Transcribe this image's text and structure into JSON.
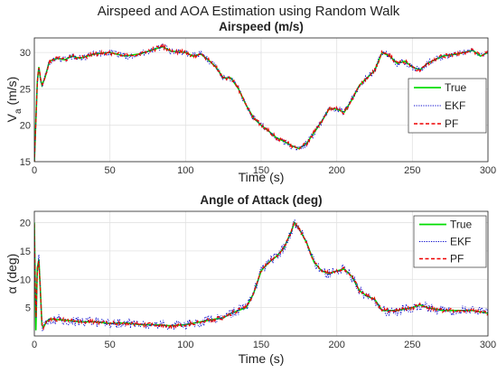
{
  "figure": {
    "suptitle": "Airspeed and AOA Estimation using Random Walk"
  },
  "chart_data": [
    {
      "type": "line",
      "title": "Airspeed (m/s)",
      "xlabel": "Time (s)",
      "ylabel": "V_a (m/s)",
      "xlim": [
        0,
        300
      ],
      "ylim": [
        15,
        32
      ],
      "xticks": [
        "0",
        "50",
        "100",
        "150",
        "200",
        "250",
        "300"
      ],
      "yticks": [
        "15",
        "20",
        "25",
        "30"
      ],
      "grid": true,
      "legend_position": "right",
      "series": [
        {
          "name": "True",
          "color": "#00dd00",
          "style": "solid",
          "x": [
            0,
            2,
            3,
            4,
            5,
            7,
            10,
            15,
            20,
            25,
            30,
            40,
            50,
            60,
            70,
            80,
            85,
            90,
            100,
            105,
            110,
            115,
            120,
            125,
            130,
            135,
            140,
            145,
            150,
            155,
            160,
            165,
            170,
            175,
            180,
            185,
            190,
            195,
            200,
            205,
            210,
            215,
            220,
            225,
            230,
            235,
            240,
            245,
            250,
            255,
            260,
            270,
            280,
            290,
            295,
            300
          ],
          "values": [
            15,
            26,
            28,
            26.5,
            25.5,
            26.5,
            28.8,
            29.2,
            29,
            29.5,
            29.2,
            29.8,
            30,
            29.5,
            29.8,
            30.5,
            30.8,
            30.2,
            30,
            29.5,
            29.8,
            29,
            28,
            26.5,
            26.5,
            25,
            22.8,
            21,
            20,
            19.2,
            18.3,
            17.8,
            17.2,
            16.8,
            17.5,
            19,
            20.5,
            22.3,
            22.2,
            21.8,
            23.5,
            25.5,
            26.5,
            27.5,
            30,
            29.5,
            28.5,
            28.8,
            28,
            27.6,
            28.5,
            29.5,
            29.8,
            30.3,
            29.5,
            30
          ]
        },
        {
          "name": "EKF",
          "color": "#0000cc",
          "style": "dotted",
          "noise": 0.45
        },
        {
          "name": "PF",
          "color": "#ee0000",
          "style": "dashed",
          "noise": 0.3
        }
      ]
    },
    {
      "type": "line",
      "title": "Angle of Attack (deg)",
      "xlabel": "Time (s)",
      "ylabel": "α (deg)",
      "xlim": [
        0,
        300
      ],
      "ylim": [
        0,
        22
      ],
      "xticks": [
        "0",
        "50",
        "100",
        "150",
        "200",
        "250",
        "300"
      ],
      "yticks": [
        "5",
        "10",
        "15",
        "20"
      ],
      "grid": true,
      "legend_position": "top-right",
      "series": [
        {
          "name": "True",
          "color": "#00dd00",
          "style": "solid",
          "x": [
            0,
            1,
            2,
            3,
            4,
            5,
            6,
            8,
            10,
            20,
            30,
            40,
            50,
            60,
            70,
            80,
            90,
            100,
            110,
            120,
            125,
            130,
            140,
            145,
            150,
            155,
            160,
            165,
            170,
            172,
            175,
            180,
            185,
            190,
            195,
            200,
            205,
            210,
            215,
            220,
            225,
            230,
            240,
            250,
            255,
            260,
            270,
            280,
            290,
            300
          ],
          "values": [
            20,
            1,
            12,
            13.5,
            8,
            2,
            1.5,
            2.5,
            3,
            2.8,
            2.5,
            2.5,
            2.2,
            2.3,
            2,
            2,
            1.8,
            2,
            2.5,
            3,
            3.2,
            4,
            5,
            7.5,
            11.5,
            13,
            14,
            15.5,
            18.5,
            20,
            19,
            16.5,
            13,
            11.5,
            11,
            11.5,
            11.8,
            10.5,
            8,
            7,
            6.5,
            4.5,
            4.5,
            5,
            5.5,
            5,
            4.5,
            4.5,
            4.5,
            4
          ]
        },
        {
          "name": "EKF",
          "color": "#0000cc",
          "style": "dotted",
          "noise": 0.9
        },
        {
          "name": "PF",
          "color": "#ee0000",
          "style": "dashed",
          "noise": 0.35
        }
      ]
    }
  ]
}
